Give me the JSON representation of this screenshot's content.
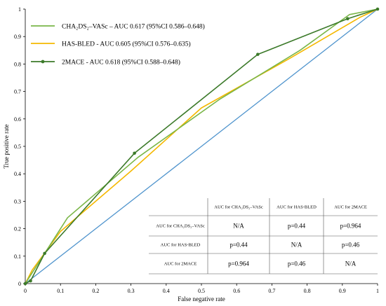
{
  "chart_data": {
    "type": "line",
    "title": "",
    "xlabel": "False negative rate",
    "ylabel": "True positive rate",
    "xlim": [
      0,
      1
    ],
    "ylim": [
      0,
      1
    ],
    "x_ticks": [
      "0",
      "0.1",
      "0.2",
      "0.3",
      "0.4",
      "0.5",
      "0.6",
      "0.7",
      "0.8",
      "0.9",
      "1"
    ],
    "y_ticks": [
      "0",
      "0.1",
      "0.2",
      "0.3",
      "0.4",
      "0.5",
      "0.6",
      "0.7",
      "0.8",
      "0.9",
      "1"
    ],
    "grid": false,
    "legend_position": "top-left",
    "series": [
      {
        "name": "CHA₂DS₂–VASc – AUC 0.617 (95%CI 0.586–0.648)",
        "color": "#7ab648",
        "marker": "none",
        "x": [
          0,
          0.02,
          0.12,
          0.32,
          0.55,
          0.78,
          0.92,
          1
        ],
        "y": [
          0,
          0.04,
          0.24,
          0.46,
          0.67,
          0.85,
          0.98,
          1
        ]
      },
      {
        "name": "HAS-BLED - AUC 0.605 (95%CI 0.576–0.635)",
        "color": "#f5b800",
        "marker": "none",
        "x": [
          0,
          0.02,
          0.1,
          0.3,
          0.5,
          0.75,
          0.95,
          1
        ],
        "y": [
          0,
          0.05,
          0.19,
          0.41,
          0.64,
          0.82,
          0.97,
          1
        ]
      },
      {
        "name": "2MACE - AUC 0.618 (95%CI 0.588–0.648)",
        "color": "#3c7a2a",
        "marker": "circle",
        "x": [
          0,
          0.015,
          0.055,
          0.31,
          0.66,
          0.915,
          1
        ],
        "y": [
          0,
          0.01,
          0.11,
          0.475,
          0.835,
          0.965,
          1
        ]
      },
      {
        "name": "",
        "color": "#4f94cd",
        "marker": "none",
        "x": [
          0,
          1
        ],
        "y": [
          0,
          1
        ]
      }
    ],
    "table": {
      "headers": [
        "",
        "AUC for CHA₂DS₂–VASc",
        "AUC for HAS-BLED",
        "AUC for 2MACE"
      ],
      "rows": [
        {
          "label": "AUC for CHA₂DS₂–VASc",
          "cells": [
            "N/A",
            "p=0.44",
            "p=0.964"
          ]
        },
        {
          "label": "AUC for HAS-BLED",
          "cells": [
            "p=0.44",
            "N/A",
            "p=0.46"
          ]
        },
        {
          "label": "AUC for 2MACE",
          "cells": [
            "p=0.964",
            "p=0.46",
            "N/A"
          ]
        }
      ]
    }
  }
}
